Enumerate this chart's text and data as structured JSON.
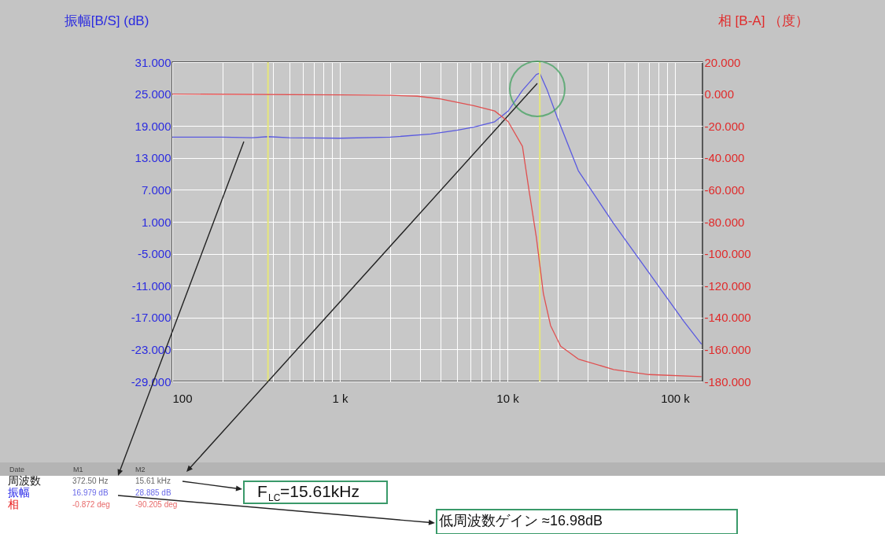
{
  "chart_data": {
    "type": "line",
    "ylabel": "振幅[B/S] (dB)",
    "y2label": "相  [B-A] （度）",
    "log": "x",
    "grid": true,
    "xlim": [
      100,
      146000
    ],
    "xticks": [
      100,
      {
        "value": 200,
        "label": null
      },
      {
        "value": 300,
        "label": null
      },
      {
        "value": 400,
        "label": null
      },
      {
        "value": 500,
        "label": null
      },
      {
        "value": 600,
        "label": null
      },
      {
        "value": 700,
        "label": null
      },
      {
        "value": 800,
        "label": null
      },
      {
        "value": 900,
        "label": null
      },
      {
        "value": 1000,
        "label": "1 k"
      },
      {
        "value": 2000,
        "label": null
      },
      {
        "value": 3000,
        "label": null
      },
      {
        "value": 4000,
        "label": null
      },
      {
        "value": 5000,
        "label": null
      },
      {
        "value": 6000,
        "label": null
      },
      {
        "value": 7000,
        "label": null
      },
      {
        "value": 8000,
        "label": null
      },
      {
        "value": 9000,
        "label": null
      },
      {
        "value": 10000,
        "label": "10 k"
      },
      {
        "value": 20000,
        "label": null
      },
      {
        "value": 30000,
        "label": null
      },
      {
        "value": 40000,
        "label": null
      },
      {
        "value": 50000,
        "label": null
      },
      {
        "value": 60000,
        "label": null
      },
      {
        "value": 70000,
        "label": null
      },
      {
        "value": 80000,
        "label": null
      },
      {
        "value": 90000,
        "label": null
      },
      {
        "value": 100000,
        "label": "100 k"
      }
    ],
    "ylim": [
      -29,
      31
    ],
    "yticks": [
      {
        "value": 31,
        "label": "31.000"
      },
      {
        "value": 25,
        "label": "25.000"
      },
      {
        "value": 19,
        "label": "19.000"
      },
      {
        "value": 13,
        "label": "13.000"
      },
      {
        "value": 7,
        "label": "7.000"
      },
      {
        "value": 1,
        "label": "1.000"
      },
      {
        "value": -5,
        "label": "-5.000"
      },
      {
        "value": -11,
        "label": "-11.000"
      },
      {
        "value": -17,
        "label": "-17.000"
      },
      {
        "value": -23,
        "label": "-23.000"
      },
      {
        "value": -29,
        "label": "-29.000"
      }
    ],
    "y2lim": [
      -180,
      20
    ],
    "y2ticks": [
      {
        "value": 20,
        "label": "20.000"
      },
      {
        "value": 0,
        "label": "0.000"
      },
      {
        "value": -20,
        "label": "-20.000"
      },
      {
        "value": -40,
        "label": "-40.000"
      },
      {
        "value": -60,
        "label": "-60.000"
      },
      {
        "value": -80,
        "label": "-80.000"
      },
      {
        "value": -100,
        "label": "-100.000"
      },
      {
        "value": -120,
        "label": "-120.000"
      },
      {
        "value": -140,
        "label": "-140.000"
      },
      {
        "value": -160,
        "label": "-160.000"
      },
      {
        "value": -180,
        "label": "-180.000"
      }
    ],
    "series": [
      {
        "color": "#5a5ae0",
        "x": [
          100,
          200,
          300,
          372.5,
          500,
          1000,
          2000,
          3500,
          5000,
          6300,
          8400,
          10100,
          12300,
          14900,
          15610,
          17300,
          19900,
          26500,
          43000,
          70000,
          113000,
          144000
        ],
        "values": [
          16.9,
          16.9,
          16.8,
          17.0,
          16.8,
          16.7,
          16.9,
          17.5,
          18.2,
          18.8,
          19.8,
          21.8,
          25.7,
          28.7,
          28.9,
          25.7,
          20.5,
          10.6,
          0.7,
          -8.6,
          -17.7,
          -22
        ]
      },
      {
        "color": "#e05050",
        "axis": "y2",
        "x": [
          100,
          1000,
          2000,
          2900,
          3900,
          6300,
          8400,
          10100,
          12300,
          13400,
          14900,
          16400,
          18100,
          20800,
          26500,
          43000,
          70000,
          144000
        ],
        "values": [
          0,
          -0.5,
          -0.8,
          -1.3,
          -2.9,
          -7.3,
          -10.6,
          -17.2,
          -32.8,
          -59,
          -90,
          -125,
          -145,
          -158,
          -166,
          -172.5,
          -175.7,
          -177
        ]
      }
    ],
    "ref_lines": [
      {
        "axis": "x",
        "value": 372.5,
        "color": "#e6e67a"
      },
      {
        "axis": "x",
        "value": 15610,
        "color": "#e6e67a"
      }
    ],
    "annotations": [
      "F$_{LC}$=15.61kHz",
      "低周波数ゲイン ≈16.98dB",
      "Date",
      "M1",
      "M2",
      "周波数",
      "372.50 Hz",
      "15.61 kHz",
      "振幅",
      "16.979 dB",
      "28.885 dB",
      "相",
      "-0.872 deg",
      "-90.205 deg"
    ]
  }
}
